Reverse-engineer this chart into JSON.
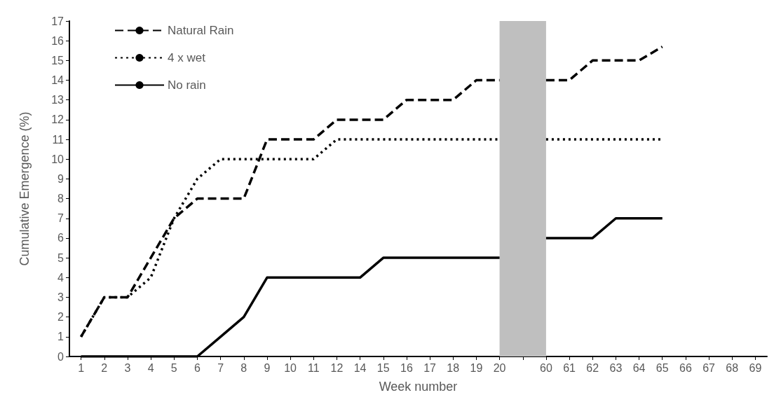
{
  "chart_data": {
    "type": "line",
    "xlabel": "Week number",
    "ylabel": "Cumulative Emergence (%)",
    "categories": [
      "1",
      "2",
      "3",
      "4",
      "5",
      "6",
      "7",
      "8",
      "9",
      "10",
      "11",
      "12",
      "14",
      "15",
      "16",
      "17",
      "18",
      "19",
      "20",
      null,
      "60",
      "61",
      "62",
      "63",
      "64",
      "65",
      "66",
      "67",
      "68",
      "69"
    ],
    "series": [
      {
        "name": "Natural Rain",
        "color": "#000000",
        "line_style": "dashed",
        "values": [
          1,
          3,
          3,
          5,
          7,
          8,
          8,
          8,
          11,
          11,
          11,
          12,
          12,
          12,
          13,
          13,
          13,
          14,
          14,
          null,
          14,
          14,
          15,
          15,
          15,
          15.7,
          null,
          null,
          null,
          null
        ]
      },
      {
        "name": "4 x wet",
        "color": "#000000",
        "line_style": "dotted",
        "values": [
          1,
          3,
          3,
          4,
          7,
          9,
          10,
          10,
          10,
          10,
          10,
          11,
          11,
          11,
          11,
          11,
          11,
          11,
          11,
          null,
          11,
          11,
          11,
          11,
          11,
          11,
          null,
          null,
          null,
          null
        ]
      },
      {
        "name": "No rain",
        "color": "#000000",
        "line_style": "solid",
        "values": [
          0,
          0,
          0,
          0,
          0,
          0,
          1,
          2,
          4,
          4,
          4,
          4,
          4,
          5,
          5,
          5,
          5,
          5,
          5,
          null,
          6,
          6,
          6,
          7,
          7,
          7,
          null,
          null,
          null,
          null
        ]
      }
    ],
    "ylim": [
      0,
      17
    ],
    "yticks": [
      0,
      1,
      2,
      3,
      4,
      5,
      6,
      7,
      8,
      9,
      10,
      11,
      12,
      13,
      14,
      15,
      16,
      17
    ],
    "bands": [
      {
        "axis": "x",
        "from": "20",
        "to": "60",
        "color": "#bfbfbf"
      }
    ],
    "grid": false,
    "legend": "top left",
    "marker": "none"
  }
}
